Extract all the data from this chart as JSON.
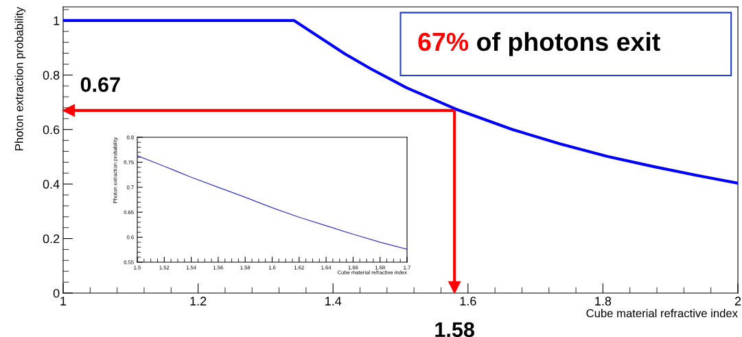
{
  "chart_data": [
    {
      "type": "line",
      "xlabel": "Cube material refractive index",
      "ylabel": "Photon extraction probability",
      "x": [
        1.0,
        1.1,
        1.2,
        1.3,
        1.342,
        1.373,
        1.418,
        1.455,
        1.509,
        1.582,
        1.666,
        1.737,
        1.807,
        1.877,
        1.947,
        2.0
      ],
      "series": [
        {
          "color": "#0000ff",
          "values": [
            1.0,
            1.0,
            1.0,
            1.0,
            1.0,
            0.95,
            0.877,
            0.824,
            0.753,
            0.675,
            0.6,
            0.547,
            0.501,
            0.463,
            0.428,
            0.403
          ]
        }
      ],
      "xlim": [
        1,
        2
      ],
      "ylim": [
        0,
        1.05
      ],
      "xticks": [
        1,
        1.2,
        1.4,
        1.6,
        1.8,
        2
      ],
      "yticks": [
        0,
        0.2,
        0.4,
        0.6,
        0.8,
        1
      ],
      "ref_lines": [
        {
          "axis": "y",
          "value": 0.67,
          "label": "0.67",
          "color": "#ff0000"
        },
        {
          "axis": "x",
          "value": 1.58,
          "label": "1.58",
          "color": "#ff0000"
        }
      ],
      "annotations": [
        "67%",
        "of photons exit"
      ]
    },
    {
      "type": "line",
      "xlabel": "Cube material refractive index",
      "ylabel": "Photon extraction probability",
      "x": [
        1.5,
        1.52,
        1.54,
        1.56,
        1.58,
        1.6,
        1.62,
        1.64,
        1.66,
        1.68,
        1.7
      ],
      "series": [
        {
          "color": "#3333cc",
          "values": [
            0.763,
            0.742,
            0.72,
            0.7,
            0.68,
            0.659,
            0.64,
            0.623,
            0.606,
            0.59,
            0.576
          ]
        }
      ],
      "xlim": [
        1.5,
        1.7
      ],
      "ylim": [
        0.55,
        0.8
      ],
      "xticks": [
        1.5,
        1.52,
        1.54,
        1.56,
        1.58,
        1.6,
        1.62,
        1.64,
        1.66,
        1.68,
        1.7
      ],
      "yticks": [
        0.55,
        0.6,
        0.65,
        0.7,
        0.75,
        0.8
      ]
    }
  ]
}
